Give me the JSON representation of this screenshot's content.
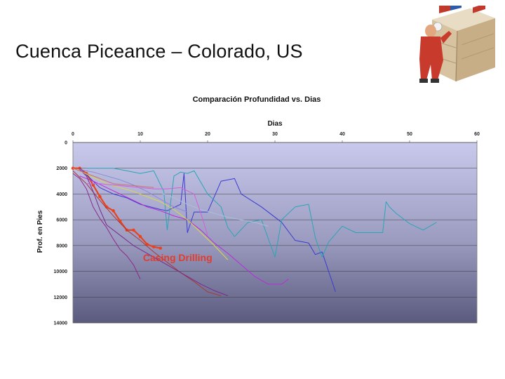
{
  "slide": {
    "title": "Cuenca Piceance – Colorado, US"
  },
  "decor": {
    "image_icon": "worker-with-crate"
  },
  "chart_data": {
    "type": "line",
    "title": "Comparación Profundidad vs. Dias",
    "xlabel": "Dias",
    "ylabel": "Prof. en Pies",
    "x_axis_position": "top",
    "y_reversed": true,
    "xlim": [
      0,
      60
    ],
    "ylim": [
      0,
      14000
    ],
    "x_ticks": [
      0,
      10,
      20,
      30,
      40,
      50,
      60
    ],
    "y_ticks": [
      0,
      2000,
      4000,
      6000,
      8000,
      10000,
      12000,
      14000
    ],
    "grid": "horizontal",
    "legend": "none",
    "annotation": {
      "text": "Casing Drilling",
      "x": 10.4,
      "y": 9200,
      "color": "#e23c2c"
    },
    "series": [
      {
        "color": "#e8431e",
        "width": 2.2,
        "markers": true,
        "x": [
          0,
          1,
          2,
          3,
          4,
          5,
          6,
          7,
          8,
          9,
          10,
          11,
          12,
          13
        ],
        "y": [
          2000,
          2000,
          2400,
          3300,
          4200,
          5000,
          5300,
          6100,
          6800,
          6800,
          7300,
          7900,
          8100,
          8200
        ]
      },
      {
        "color": "#3a3ad0",
        "x": [
          1,
          3,
          4,
          6,
          8,
          10,
          13,
          14,
          16,
          16.5,
          17,
          18,
          20,
          22,
          24,
          25,
          28,
          31,
          33,
          35,
          36,
          37,
          39
        ],
        "y": [
          2000,
          3000,
          3500,
          4000,
          4300,
          4800,
          5200,
          5300,
          4800,
          2400,
          7000,
          5400,
          5400,
          3000,
          2800,
          4000,
          5000,
          6200,
          7600,
          7800,
          8700,
          8500,
          11600
        ]
      },
      {
        "color": "#2aa5b5",
        "x": [
          2,
          4,
          6,
          8,
          10,
          12,
          13.5,
          14,
          15,
          16,
          17,
          18,
          20,
          22,
          23,
          24,
          26,
          28,
          30,
          31,
          33,
          35,
          36,
          37,
          38,
          40,
          42,
          46,
          46.5,
          47,
          48,
          50,
          52,
          54
        ],
        "y": [
          2000,
          2000,
          2000,
          2200,
          2400,
          2200,
          3800,
          6800,
          2600,
          2300,
          2400,
          2200,
          4000,
          5000,
          6600,
          7300,
          6200,
          6000,
          8900,
          6000,
          5000,
          4800,
          7400,
          8900,
          7700,
          6500,
          7000,
          7000,
          4600,
          5000,
          5500,
          6300,
          6800,
          6200
        ]
      },
      {
        "color": "#b82bd8",
        "x": [
          1,
          3,
          5,
          7,
          9,
          11,
          13,
          15,
          17,
          19,
          21,
          23,
          25,
          27,
          29,
          31,
          32
        ],
        "y": [
          2600,
          3000,
          3500,
          4000,
          4500,
          5000,
          5300,
          5700,
          6000,
          6800,
          7800,
          8600,
          9500,
          10400,
          11000,
          11000,
          10600
        ]
      },
      {
        "color": "#8b2a8b",
        "x": [
          0,
          1,
          2,
          3,
          4,
          5,
          6,
          7,
          8,
          9,
          10
        ],
        "y": [
          2400,
          2800,
          3600,
          5000,
          5900,
          6600,
          7500,
          8300,
          8800,
          9500,
          10600
        ]
      },
      {
        "color": "#a63a3a",
        "x": [
          0,
          2,
          4,
          6,
          8,
          10,
          12,
          14,
          16,
          18,
          20,
          22
        ],
        "y": [
          2200,
          3200,
          4500,
          5700,
          6800,
          7600,
          8500,
          9300,
          10100,
          10800,
          11600,
          11900
        ]
      },
      {
        "color": "#7a2a8a",
        "x": [
          1,
          2,
          3,
          4,
          5,
          7,
          9,
          11,
          13,
          15,
          17,
          19,
          21,
          23
        ],
        "y": [
          2100,
          2600,
          3800,
          5200,
          6400,
          7200,
          8000,
          8600,
          9200,
          9800,
          10400,
          11000,
          11500,
          11900
        ]
      },
      {
        "color": "#d9d944",
        "x": [
          0,
          1,
          3,
          5,
          7,
          9,
          11,
          13,
          15,
          17,
          19,
          21,
          23
        ],
        "y": [
          2000,
          2200,
          2700,
          3200,
          3500,
          3800,
          4200,
          4600,
          5200,
          6000,
          7000,
          8000,
          9100
        ]
      },
      {
        "color": "#a8c0d8",
        "x": [
          1,
          3,
          5,
          7,
          9,
          11,
          13,
          15,
          17,
          19,
          21,
          23,
          25,
          27,
          29
        ],
        "y": [
          2200,
          2600,
          2700,
          2800,
          3100,
          3500,
          3900,
          4300,
          4800,
          5200,
          5500,
          5800,
          6000,
          6200,
          6500
        ]
      },
      {
        "color": "#8a8ad8",
        "x": [
          1,
          3,
          5,
          7,
          9,
          11,
          13,
          15,
          17
        ],
        "y": [
          2100,
          2300,
          2600,
          2900,
          3300,
          3800,
          4400,
          5000,
          5400
        ]
      },
      {
        "color": "#c87070",
        "x": [
          0,
          2,
          4,
          6,
          8,
          10,
          12
        ],
        "y": [
          2000,
          2400,
          2800,
          3200,
          3300,
          3400,
          3500
        ]
      },
      {
        "color": "#d060d8",
        "x": [
          2,
          4,
          6,
          8,
          10,
          12,
          14,
          16,
          18,
          19,
          20
        ],
        "y": [
          3200,
          3200,
          3300,
          3400,
          3500,
          3600,
          3600,
          3500,
          4000,
          5500,
          7200
        ]
      }
    ]
  }
}
